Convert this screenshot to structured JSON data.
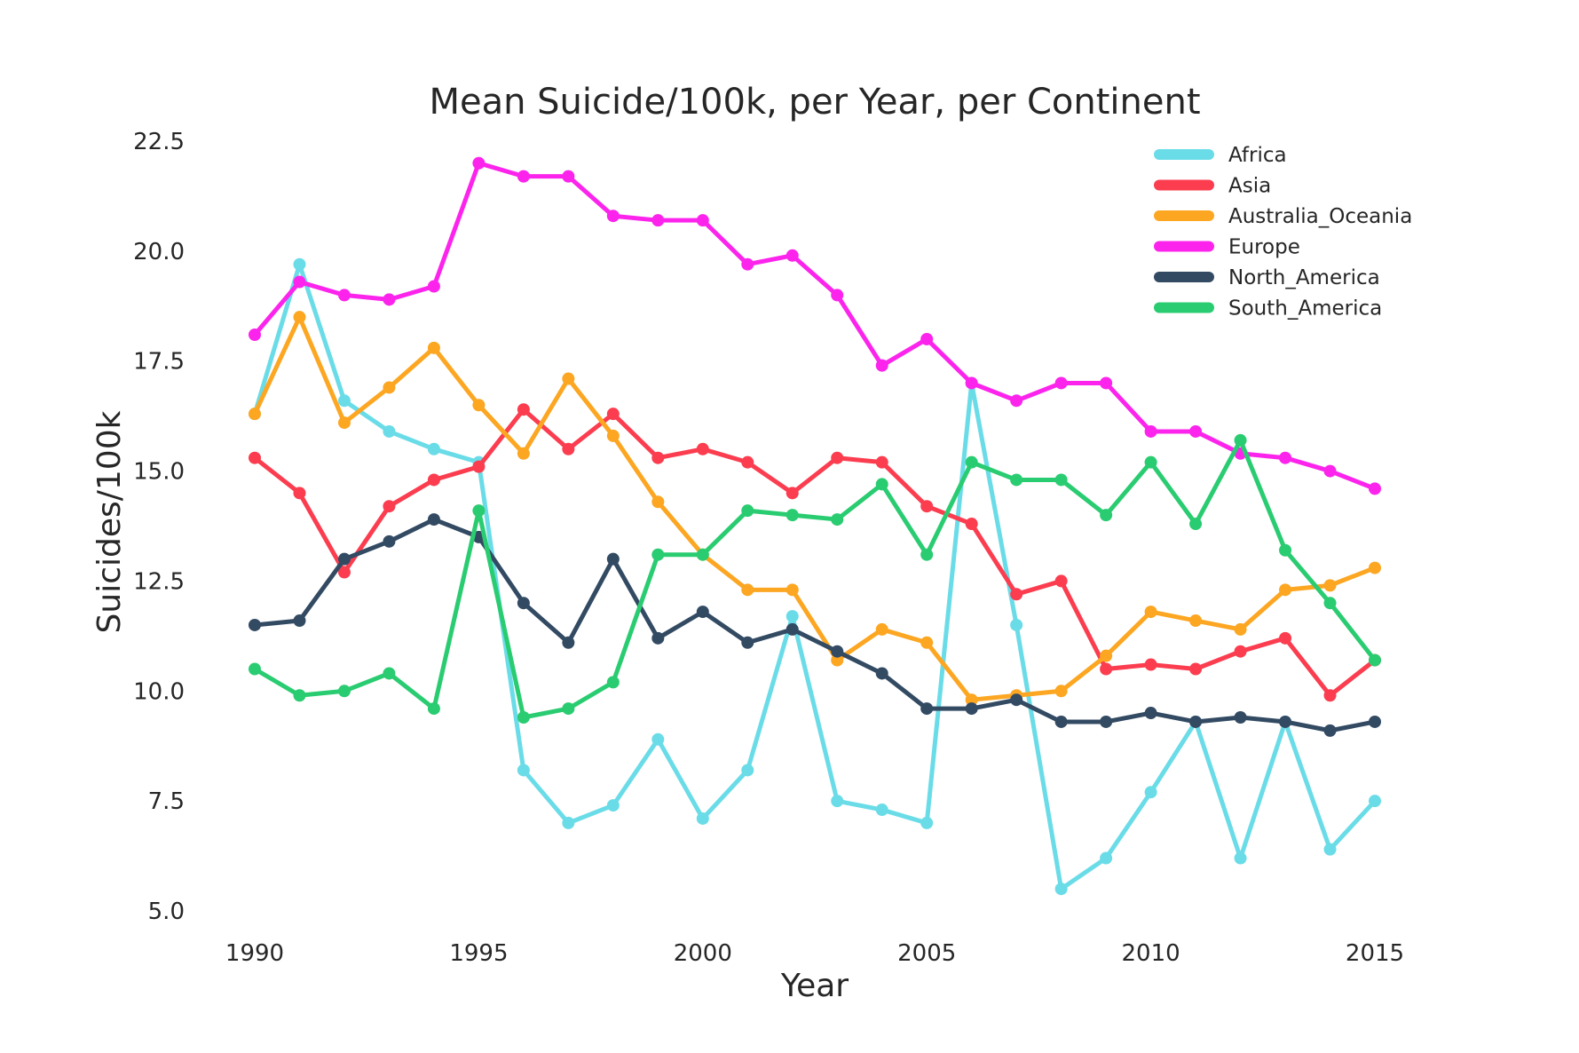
{
  "chart_data": {
    "type": "line",
    "title": "Mean Suicide/100k, per Year, per Continent",
    "xlabel": "Year",
    "ylabel": "Suicides/100k",
    "xlim": [
      1990,
      2015
    ],
    "ylim": [
      5.0,
      22.5
    ],
    "xticks": [
      1990,
      1995,
      2000,
      2005,
      2010,
      2015
    ],
    "yticks": [
      5.0,
      7.5,
      10.0,
      12.5,
      15.0,
      17.5,
      20.0,
      22.5
    ],
    "xtick_labels": [
      "1990",
      "1995",
      "2000",
      "2005",
      "2010",
      "2015"
    ],
    "ytick_labels": [
      "5.0",
      "7.5",
      "10.0",
      "12.5",
      "15.0",
      "17.5",
      "20.0",
      "22.5"
    ],
    "grid": false,
    "legend_position": "top-right",
    "x": [
      1990,
      1991,
      1992,
      1993,
      1994,
      1995,
      1996,
      1997,
      1998,
      1999,
      2000,
      2001,
      2002,
      2003,
      2004,
      2005,
      2006,
      2007,
      2008,
      2009,
      2010,
      2011,
      2012,
      2013,
      2014,
      2015
    ],
    "series": [
      {
        "name": "Africa",
        "color": "#6adce8",
        "values": [
          16.3,
          19.7,
          16.6,
          15.9,
          15.5,
          15.2,
          8.2,
          7.0,
          7.4,
          8.9,
          7.1,
          8.2,
          11.7,
          7.5,
          7.3,
          7.0,
          17.0,
          11.5,
          5.5,
          6.2,
          7.7,
          9.3,
          6.2,
          9.3,
          6.4,
          7.5
        ]
      },
      {
        "name": "Asia",
        "color": "#fb3d4f",
        "values": [
          15.3,
          14.5,
          12.7,
          14.2,
          14.8,
          15.1,
          16.4,
          15.5,
          16.3,
          15.3,
          15.5,
          15.2,
          14.5,
          15.3,
          15.2,
          14.2,
          13.8,
          12.2,
          12.5,
          10.5,
          10.6,
          10.5,
          10.9,
          11.2,
          9.9,
          10.7
        ]
      },
      {
        "name": "Australia_Oceania",
        "color": "#fca622",
        "values": [
          16.3,
          18.5,
          16.1,
          16.9,
          17.8,
          16.5,
          15.4,
          17.1,
          15.8,
          14.3,
          13.1,
          12.3,
          12.3,
          10.7,
          11.4,
          11.1,
          9.8,
          9.9,
          10.0,
          10.8,
          11.8,
          11.6,
          11.4,
          12.3,
          12.4,
          12.8
        ]
      },
      {
        "name": "Europe",
        "color": "#fc24ec",
        "values": [
          18.1,
          19.3,
          19.0,
          18.9,
          19.2,
          22.0,
          21.7,
          21.7,
          20.8,
          20.7,
          20.7,
          19.7,
          19.9,
          19.0,
          17.4,
          18.0,
          17.0,
          16.6,
          17.0,
          17.0,
          15.9,
          15.9,
          15.4,
          15.3,
          15.0,
          14.6
        ]
      },
      {
        "name": "North_America",
        "color": "#334a63",
        "values": [
          11.5,
          11.6,
          13.0,
          13.4,
          13.9,
          13.5,
          12.0,
          11.1,
          13.0,
          11.2,
          11.8,
          11.1,
          11.4,
          10.9,
          10.4,
          9.6,
          9.6,
          9.8,
          9.3,
          9.3,
          9.5,
          9.3,
          9.4,
          9.3,
          9.1,
          9.3
        ]
      },
      {
        "name": "South_America",
        "color": "#2acc71",
        "values": [
          10.5,
          9.9,
          10.0,
          10.4,
          9.6,
          14.1,
          9.4,
          9.6,
          10.2,
          13.1,
          13.1,
          14.1,
          14.0,
          13.9,
          14.7,
          13.1,
          15.2,
          14.8,
          14.8,
          14.0,
          15.2,
          13.8,
          15.7,
          13.2,
          12.0,
          10.7
        ]
      }
    ]
  }
}
